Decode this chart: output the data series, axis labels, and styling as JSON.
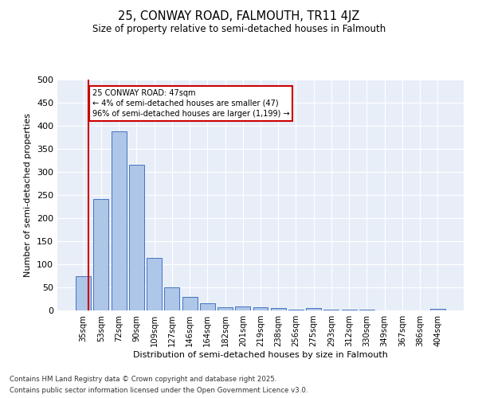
{
  "title1": "25, CONWAY ROAD, FALMOUTH, TR11 4JZ",
  "title2": "Size of property relative to semi-detached houses in Falmouth",
  "xlabel": "Distribution of semi-detached houses by size in Falmouth",
  "ylabel": "Number of semi-detached properties",
  "categories": [
    "35sqm",
    "53sqm",
    "72sqm",
    "90sqm",
    "109sqm",
    "127sqm",
    "146sqm",
    "164sqm",
    "182sqm",
    "201sqm",
    "219sqm",
    "238sqm",
    "256sqm",
    "275sqm",
    "293sqm",
    "312sqm",
    "330sqm",
    "349sqm",
    "367sqm",
    "386sqm",
    "404sqm"
  ],
  "values": [
    75,
    242,
    388,
    315,
    113,
    50,
    30,
    15,
    7,
    8,
    7,
    5,
    1,
    5,
    2,
    1,
    2,
    0,
    0,
    0,
    4
  ],
  "bar_color": "#aec6e8",
  "bar_edge_color": "#4472c4",
  "annotation_box_text": "25 CONWAY ROAD: 47sqm\n← 4% of semi-detached houses are smaller (47)\n96% of semi-detached houses are larger (1,199) →",
  "annotation_box_color": "#cc0000",
  "background_color": "#e8eef8",
  "grid_color": "#ffffff",
  "ylim": [
    0,
    500
  ],
  "yticks": [
    0,
    50,
    100,
    150,
    200,
    250,
    300,
    350,
    400,
    450,
    500
  ],
  "footer1": "Contains HM Land Registry data © Crown copyright and database right 2025.",
  "footer2": "Contains public sector information licensed under the Open Government Licence v3.0.",
  "fig_width": 6.0,
  "fig_height": 5.0,
  "dpi": 100
}
